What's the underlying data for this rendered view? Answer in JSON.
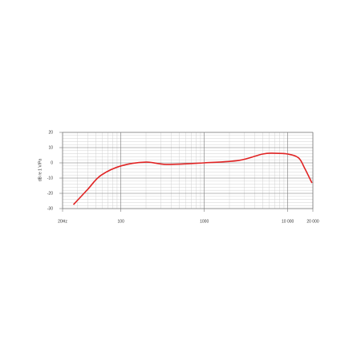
{
  "chart_data": {
    "type": "line",
    "y_label": "dB re 1 V/Pa",
    "x_scale": "log",
    "xlim": [
      20,
      20000
    ],
    "xticks": [
      {
        "value": 20,
        "label": "20Hz"
      },
      100,
      1000,
      {
        "value": 10000,
        "label": "10 000"
      },
      {
        "value": 20000,
        "label": "20 000"
      }
    ],
    "minor_xticks": [
      30,
      40,
      50,
      60,
      70,
      80,
      90,
      200,
      300,
      400,
      500,
      600,
      700,
      800,
      900,
      2000,
      3000,
      4000,
      5000,
      6000,
      7000,
      8000,
      9000
    ],
    "ylim": [
      -30,
      20
    ],
    "yticks": [
      -30,
      -20,
      -10,
      0,
      10,
      20
    ],
    "minor_yticks": [
      -28,
      -26,
      -24,
      -22,
      -18,
      -16,
      -14,
      -12,
      -8,
      -6,
      -4,
      -2,
      2,
      4,
      6,
      8,
      12,
      14,
      16,
      18
    ],
    "grid": true,
    "x": [
      27,
      40,
      57,
      100,
      200,
      350,
      1000,
      2600,
      5000,
      7000,
      10000,
      13500,
      16000,
      19500
    ],
    "series": [
      {
        "color": "#e02424",
        "values": [
          -27.4,
          -17.4,
          -8.4,
          -2,
          0.5,
          -1,
          0,
          1.6,
          5.8,
          6.3,
          5.8,
          3.2,
          -3.7,
          -13.2
        ]
      }
    ]
  }
}
